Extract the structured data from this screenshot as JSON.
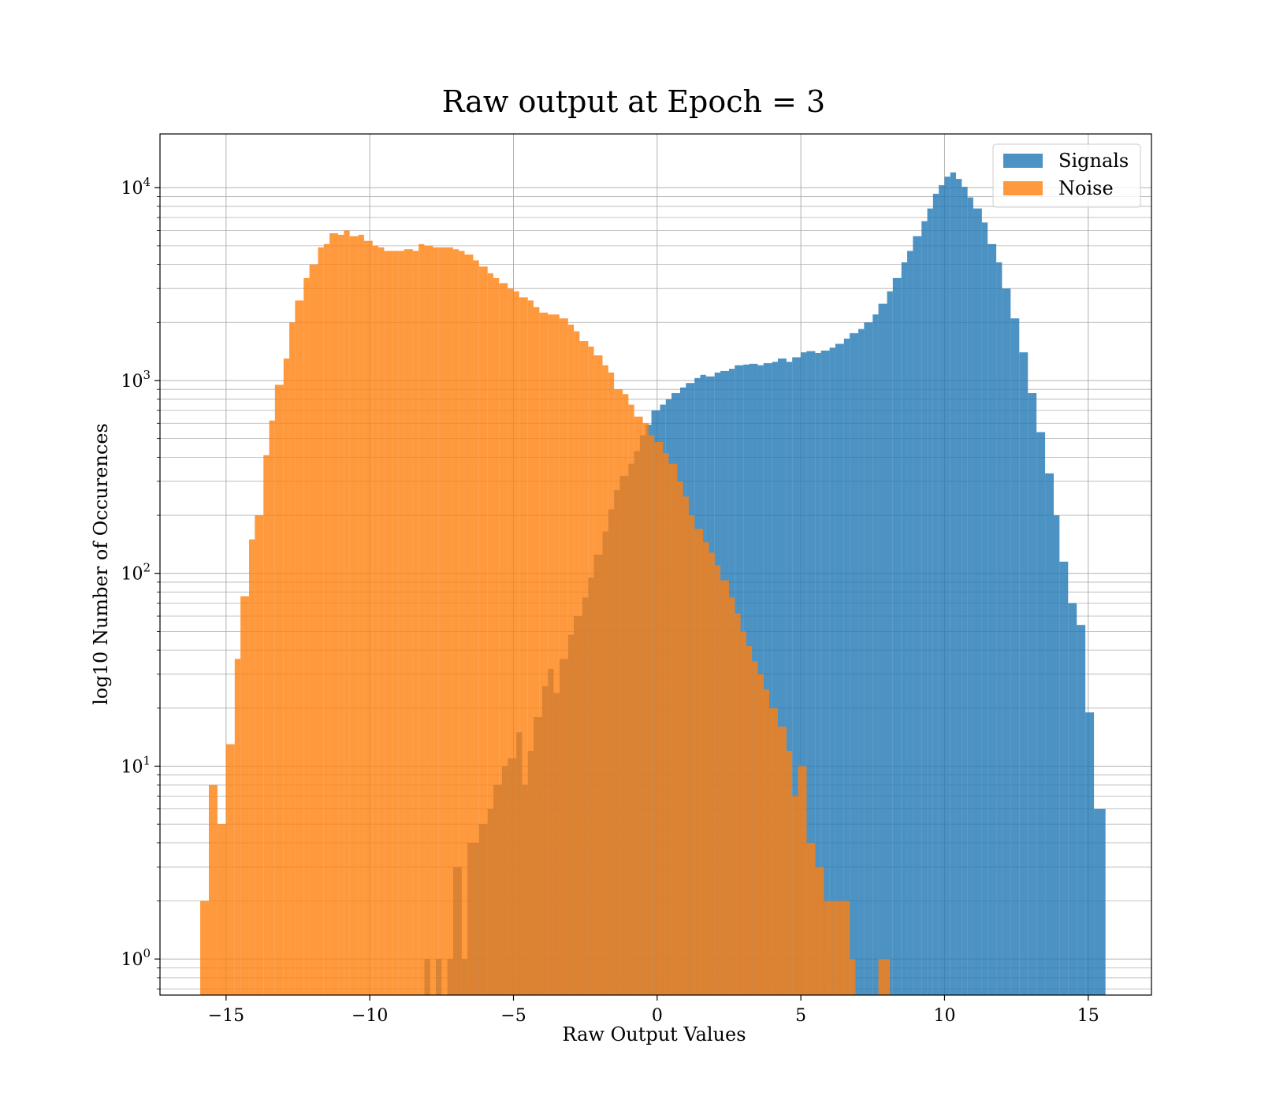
{
  "chart_data": {
    "type": "bar",
    "title": "Raw output at Epoch = 3",
    "xlabel": "Raw Output Values",
    "ylabel": "log10 Number of Occurences",
    "xlim": [
      -17.3,
      17.2
    ],
    "ylim": [
      0.65,
      19000
    ],
    "yscale": "log",
    "grid": true,
    "legend_position": "top-right",
    "xticks": [
      -15,
      -10,
      -5,
      0,
      5,
      10,
      15
    ],
    "xtick_labels": [
      "−15",
      "−10",
      "−5",
      "0",
      "5",
      "10",
      "15"
    ],
    "yticks": [
      1,
      10,
      100,
      1000,
      10000
    ],
    "ytick_labels": [
      {
        "base": "10",
        "exp": "0"
      },
      {
        "base": "10",
        "exp": "1"
      },
      {
        "base": "10",
        "exp": "2"
      },
      {
        "base": "10",
        "exp": "3"
      },
      {
        "base": "10",
        "exp": "4"
      }
    ],
    "series": [
      {
        "name": "Signals",
        "color": "#1f77b4",
        "opacity": 0.8,
        "bins": [
          [
            -8.1,
            -7.9,
            1
          ],
          [
            -7.7,
            -7.5,
            1
          ],
          [
            -7.3,
            -7.1,
            1
          ],
          [
            -7.1,
            -6.8,
            3
          ],
          [
            -6.8,
            -6.6,
            1
          ],
          [
            -6.6,
            -6.2,
            4
          ],
          [
            -6.2,
            -5.9,
            5
          ],
          [
            -5.9,
            -5.7,
            6
          ],
          [
            -5.7,
            -5.4,
            8
          ],
          [
            -5.4,
            -5.2,
            10
          ],
          [
            -5.2,
            -4.9,
            11
          ],
          [
            -4.9,
            -4.7,
            15
          ],
          [
            -4.7,
            -4.5,
            8
          ],
          [
            -4.5,
            -4.3,
            12
          ],
          [
            -4.3,
            -4.0,
            18
          ],
          [
            -4.0,
            -3.8,
            26
          ],
          [
            -3.8,
            -3.6,
            32
          ],
          [
            -3.6,
            -3.4,
            24
          ],
          [
            -3.4,
            -3.1,
            36
          ],
          [
            -3.1,
            -2.9,
            48
          ],
          [
            -2.9,
            -2.6,
            60
          ],
          [
            -2.6,
            -2.4,
            75
          ],
          [
            -2.4,
            -2.2,
            95
          ],
          [
            -2.2,
            -1.9,
            125
          ],
          [
            -1.9,
            -1.7,
            165
          ],
          [
            -1.7,
            -1.5,
            215
          ],
          [
            -1.5,
            -1.3,
            270
          ],
          [
            -1.3,
            -1.0,
            320
          ],
          [
            -1.0,
            -0.8,
            370
          ],
          [
            -0.8,
            -0.6,
            430
          ],
          [
            -0.6,
            -0.4,
            520
          ],
          [
            -0.4,
            -0.2,
            590
          ],
          [
            -0.2,
            0.1,
            700
          ],
          [
            0.1,
            0.3,
            750
          ],
          [
            0.3,
            0.5,
            800
          ],
          [
            0.5,
            0.8,
            860
          ],
          [
            0.8,
            1.0,
            920
          ],
          [
            1.0,
            1.3,
            970
          ],
          [
            1.3,
            1.5,
            1030
          ],
          [
            1.5,
            1.7,
            1070
          ],
          [
            1.7,
            2.0,
            1050
          ],
          [
            2.0,
            2.2,
            1100
          ],
          [
            2.2,
            2.5,
            1120
          ],
          [
            2.5,
            2.7,
            1150
          ],
          [
            2.7,
            3.0,
            1200
          ],
          [
            3.0,
            3.2,
            1210
          ],
          [
            3.2,
            3.5,
            1220
          ],
          [
            3.5,
            3.7,
            1200
          ],
          [
            3.7,
            4.0,
            1230
          ],
          [
            4.0,
            4.2,
            1250
          ],
          [
            4.2,
            4.5,
            1300
          ],
          [
            4.5,
            4.7,
            1250
          ],
          [
            4.7,
            5.0,
            1320
          ],
          [
            5.0,
            5.2,
            1400
          ],
          [
            5.2,
            5.5,
            1420
          ],
          [
            5.5,
            5.7,
            1390
          ],
          [
            5.7,
            6.0,
            1430
          ],
          [
            6.0,
            6.2,
            1480
          ],
          [
            6.2,
            6.5,
            1550
          ],
          [
            6.5,
            6.7,
            1650
          ],
          [
            6.7,
            7.0,
            1760
          ],
          [
            7.0,
            7.2,
            1850
          ],
          [
            7.2,
            7.5,
            2000
          ],
          [
            7.5,
            7.7,
            2200
          ],
          [
            7.7,
            8.0,
            2500
          ],
          [
            8.0,
            8.2,
            2900
          ],
          [
            8.2,
            8.5,
            3400
          ],
          [
            8.5,
            8.7,
            4100
          ],
          [
            8.7,
            8.9,
            4700
          ],
          [
            8.9,
            9.2,
            5600
          ],
          [
            9.2,
            9.4,
            6700
          ],
          [
            9.4,
            9.6,
            7800
          ],
          [
            9.6,
            9.8,
            9300
          ],
          [
            9.8,
            10.0,
            10300
          ],
          [
            10.0,
            10.2,
            11400
          ],
          [
            10.2,
            10.4,
            12000
          ],
          [
            10.4,
            10.6,
            11100
          ],
          [
            10.6,
            10.8,
            10100
          ],
          [
            10.8,
            11.0,
            8900
          ],
          [
            11.0,
            11.3,
            7800
          ],
          [
            11.3,
            11.5,
            6600
          ],
          [
            11.5,
            11.8,
            5100
          ],
          [
            11.8,
            12.0,
            4100
          ],
          [
            12.0,
            12.3,
            3000
          ],
          [
            12.3,
            12.6,
            2100
          ],
          [
            12.6,
            12.9,
            1400
          ],
          [
            12.9,
            13.2,
            860
          ],
          [
            13.2,
            13.5,
            540
          ],
          [
            13.5,
            13.8,
            330
          ],
          [
            13.8,
            14.0,
            200
          ],
          [
            14.0,
            14.3,
            115
          ],
          [
            14.3,
            14.6,
            70
          ],
          [
            14.6,
            14.9,
            54
          ],
          [
            14.9,
            15.2,
            19
          ],
          [
            15.2,
            15.6,
            6
          ]
        ]
      },
      {
        "name": "Noise",
        "color": "#ff7f0e",
        "opacity": 0.8,
        "bins": [
          [
            -15.9,
            -15.6,
            2
          ],
          [
            -15.6,
            -15.3,
            8
          ],
          [
            -15.3,
            -15.0,
            5
          ],
          [
            -15.0,
            -14.7,
            13
          ],
          [
            -14.7,
            -14.5,
            36
          ],
          [
            -14.5,
            -14.2,
            76
          ],
          [
            -14.2,
            -14.0,
            150
          ],
          [
            -14.0,
            -13.7,
            200
          ],
          [
            -13.7,
            -13.5,
            410
          ],
          [
            -13.5,
            -13.3,
            620
          ],
          [
            -13.3,
            -13.0,
            950
          ],
          [
            -13.0,
            -12.8,
            1300
          ],
          [
            -12.8,
            -12.6,
            2000
          ],
          [
            -12.6,
            -12.3,
            2600
          ],
          [
            -12.3,
            -12.1,
            3400
          ],
          [
            -12.1,
            -11.8,
            4000
          ],
          [
            -11.8,
            -11.6,
            4900
          ],
          [
            -11.6,
            -11.4,
            5100
          ],
          [
            -11.4,
            -11.1,
            5800
          ],
          [
            -11.1,
            -10.9,
            5700
          ],
          [
            -10.9,
            -10.7,
            6000
          ],
          [
            -10.7,
            -10.4,
            5600
          ],
          [
            -10.4,
            -10.2,
            5700
          ],
          [
            -10.2,
            -9.9,
            5300
          ],
          [
            -9.9,
            -9.7,
            5000
          ],
          [
            -9.7,
            -9.5,
            4900
          ],
          [
            -9.5,
            -9.2,
            4700
          ],
          [
            -9.2,
            -9.0,
            4700
          ],
          [
            -9.0,
            -8.8,
            4700
          ],
          [
            -8.8,
            -8.5,
            4800
          ],
          [
            -8.5,
            -8.3,
            4700
          ],
          [
            -8.3,
            -8.1,
            5100
          ],
          [
            -8.1,
            -7.8,
            5000
          ],
          [
            -7.8,
            -7.6,
            4900
          ],
          [
            -7.6,
            -7.4,
            4900
          ],
          [
            -7.4,
            -7.1,
            4900
          ],
          [
            -7.1,
            -6.9,
            4800
          ],
          [
            -6.9,
            -6.7,
            4700
          ],
          [
            -6.7,
            -6.4,
            4500
          ],
          [
            -6.4,
            -6.2,
            4200
          ],
          [
            -6.2,
            -5.9,
            3900
          ],
          [
            -5.9,
            -5.7,
            3600
          ],
          [
            -5.7,
            -5.5,
            3400
          ],
          [
            -5.5,
            -5.2,
            3200
          ],
          [
            -5.2,
            -5.0,
            3000
          ],
          [
            -5.0,
            -4.8,
            2900
          ],
          [
            -4.8,
            -4.5,
            2700
          ],
          [
            -4.5,
            -4.3,
            2600
          ],
          [
            -4.3,
            -4.1,
            2400
          ],
          [
            -4.1,
            -3.8,
            2250
          ],
          [
            -3.8,
            -3.6,
            2200
          ],
          [
            -3.6,
            -3.4,
            2200
          ],
          [
            -3.4,
            -3.1,
            2100
          ],
          [
            -3.1,
            -2.9,
            1950
          ],
          [
            -2.9,
            -2.7,
            1800
          ],
          [
            -2.7,
            -2.4,
            1600
          ],
          [
            -2.4,
            -2.2,
            1500
          ],
          [
            -2.2,
            -1.9,
            1350
          ],
          [
            -1.9,
            -1.7,
            1200
          ],
          [
            -1.7,
            -1.5,
            1100
          ],
          [
            -1.5,
            -1.2,
            900
          ],
          [
            -1.2,
            -1.0,
            850
          ],
          [
            -1.0,
            -0.8,
            750
          ],
          [
            -0.8,
            -0.5,
            650
          ],
          [
            -0.5,
            -0.3,
            600
          ],
          [
            -0.3,
            -0.1,
            520
          ],
          [
            -0.1,
            0.2,
            480
          ],
          [
            0.2,
            0.4,
            420
          ],
          [
            0.4,
            0.7,
            370
          ],
          [
            0.7,
            0.9,
            300
          ],
          [
            0.9,
            1.1,
            250
          ],
          [
            1.1,
            1.3,
            200
          ],
          [
            1.3,
            1.6,
            170
          ],
          [
            1.6,
            1.8,
            145
          ],
          [
            1.8,
            2.0,
            128
          ],
          [
            2.0,
            2.2,
            110
          ],
          [
            2.2,
            2.5,
            92
          ],
          [
            2.5,
            2.7,
            75
          ],
          [
            2.7,
            2.9,
            62
          ],
          [
            2.9,
            3.1,
            50
          ],
          [
            3.1,
            3.3,
            42
          ],
          [
            3.3,
            3.5,
            35
          ],
          [
            3.5,
            3.7,
            30
          ],
          [
            3.7,
            3.9,
            25
          ],
          [
            3.9,
            4.2,
            20
          ],
          [
            4.2,
            4.5,
            16
          ],
          [
            4.5,
            4.7,
            12
          ],
          [
            4.7,
            4.9,
            7
          ],
          [
            4.9,
            5.2,
            10
          ],
          [
            5.2,
            5.5,
            4
          ],
          [
            5.5,
            5.8,
            3
          ],
          [
            5.8,
            6.1,
            2
          ],
          [
            6.1,
            6.4,
            2
          ],
          [
            6.4,
            6.7,
            2
          ],
          [
            6.7,
            6.9,
            1
          ],
          [
            7.7,
            7.9,
            1
          ],
          [
            7.9,
            8.1,
            1
          ]
        ]
      }
    ]
  }
}
